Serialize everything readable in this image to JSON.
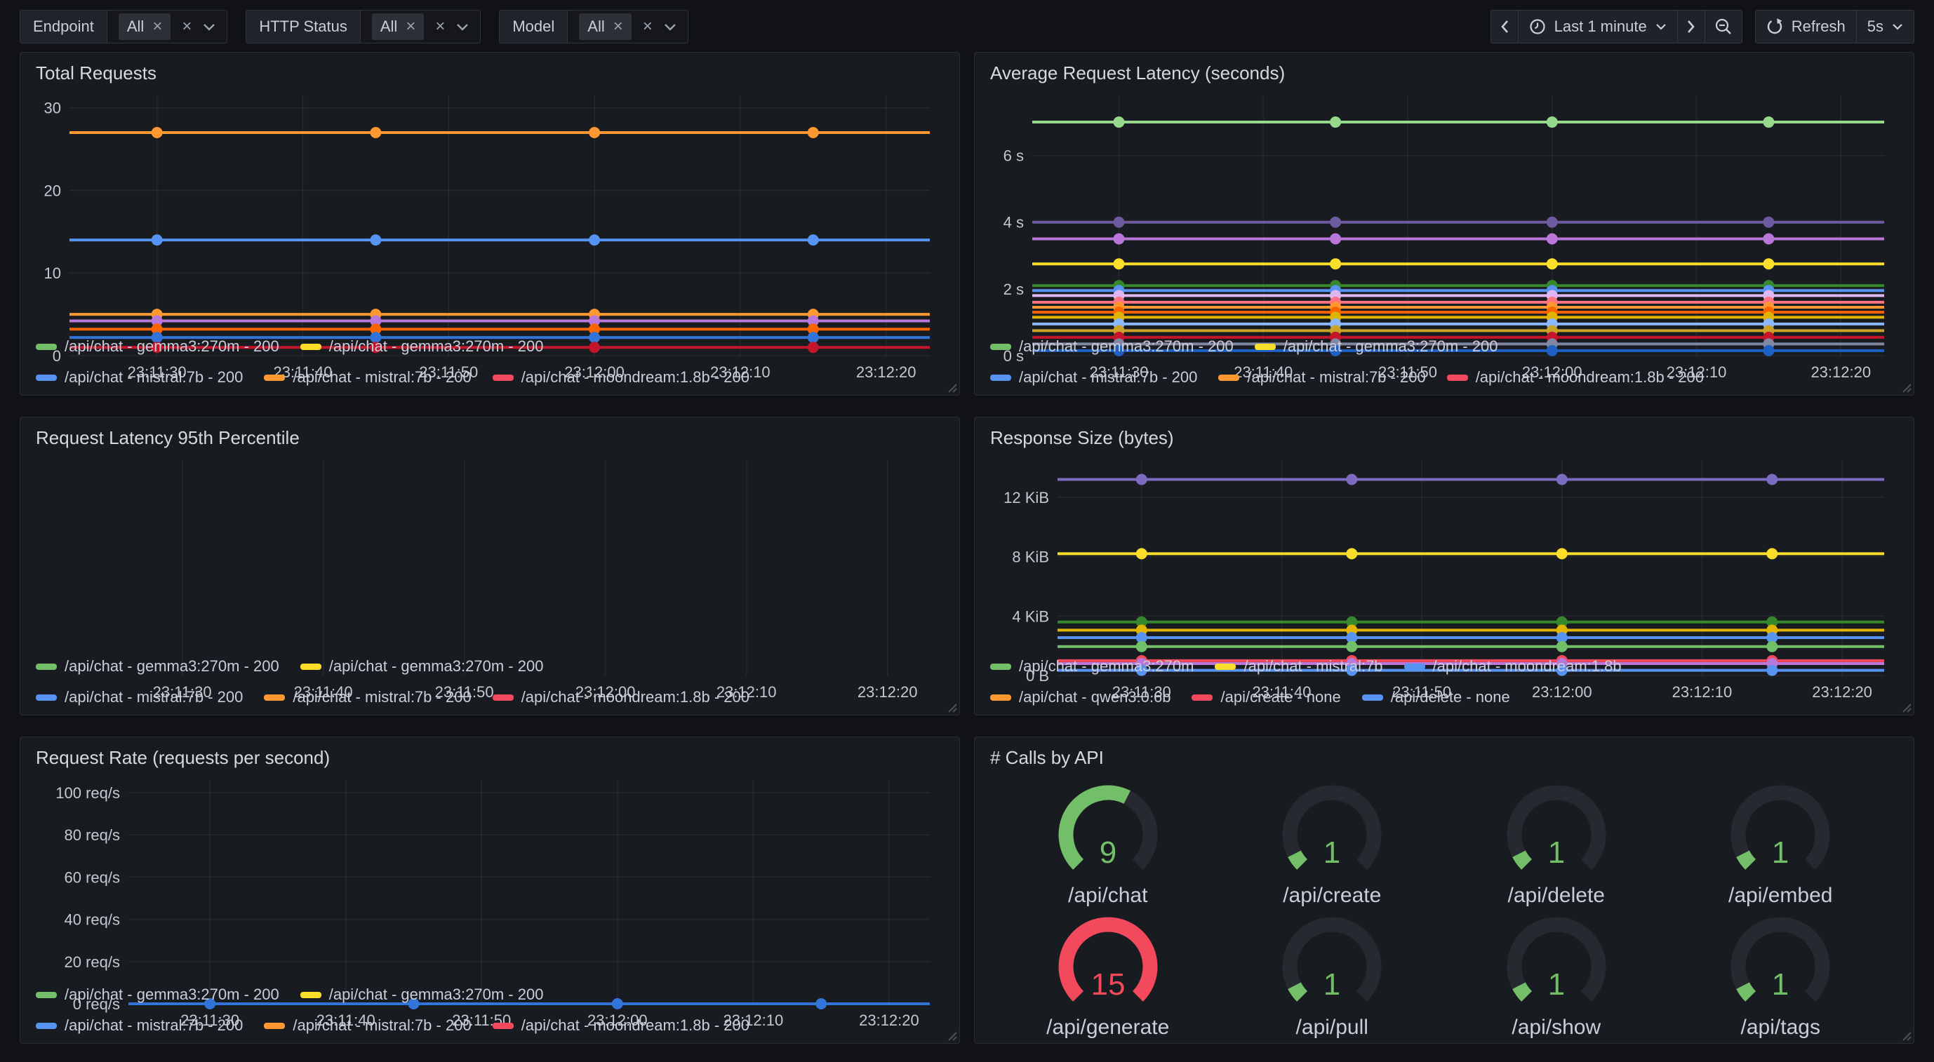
{
  "toolbar": {
    "filters": [
      {
        "label": "Endpoint",
        "chip": "All",
        "chip_remove": "×",
        "clear": "×"
      },
      {
        "label": "HTTP Status",
        "chip": "All",
        "chip_remove": "×",
        "clear": "×"
      },
      {
        "label": "Model",
        "chip": "All",
        "chip_remove": "×",
        "clear": "×"
      }
    ],
    "time_picker": {
      "range": "Last 1 minute",
      "refresh": "Refresh",
      "interval": "5s"
    }
  },
  "chart_data": [
    {
      "id": "total-requests",
      "type": "line",
      "panel_title": "Total Requests",
      "x_start": "23:11:24",
      "x_end": "23:12:23",
      "xticks": [
        "23:11:30",
        "23:11:40",
        "23:11:50",
        "23:12:00",
        "23:12:10",
        "23:12:20"
      ],
      "sample_times": [
        "23:11:30",
        "23:11:45",
        "23:12:00",
        "23:12:15"
      ],
      "yticks": [
        {
          "value": 0,
          "label": "0"
        },
        {
          "value": 10,
          "label": "10"
        },
        {
          "value": 20,
          "label": "20"
        },
        {
          "value": 30,
          "label": "30"
        }
      ],
      "ylim": [
        0,
        31.5
      ],
      "series": [
        {
          "color": "#FF9830",
          "value": 27
        },
        {
          "color": "#5794F2",
          "value": 14
        },
        {
          "color": "#FF9830",
          "value": 5
        },
        {
          "color": "#B877D9",
          "value": 4.2
        },
        {
          "color": "#FA6400",
          "value": 3.2
        },
        {
          "color": "#3274D9",
          "value": 2.2
        },
        {
          "color": "#C4162A",
          "value": 1
        }
      ],
      "legend_rows": [
        [
          {
            "color": "#73BF69",
            "label": "/api/chat - gemma3:270m - 200"
          },
          {
            "color": "#FADE2A",
            "label": "/api/chat - gemma3:270m - 200"
          }
        ],
        [
          {
            "color": "#5794F2",
            "label": "/api/chat - mistral:7b - 200"
          },
          {
            "color": "#FF9830",
            "label": "/api/chat - mistral:7b - 200"
          },
          {
            "color": "#F2495C",
            "label": "/api/chat - moondream:1.8b - 200"
          }
        ]
      ]
    },
    {
      "id": "avg-latency",
      "type": "line",
      "panel_title": "Average Request Latency (seconds)",
      "x_start": "23:11:24",
      "x_end": "23:12:23",
      "xticks": [
        "23:11:30",
        "23:11:40",
        "23:11:50",
        "23:12:00",
        "23:12:10",
        "23:12:20"
      ],
      "sample_times": [
        "23:11:30",
        "23:11:45",
        "23:12:00",
        "23:12:15"
      ],
      "yticks": [
        {
          "value": 0,
          "label": "0 s"
        },
        {
          "value": 2,
          "label": "2 s"
        },
        {
          "value": 4,
          "label": "4 s"
        },
        {
          "value": 6,
          "label": "6 s"
        }
      ],
      "ylim": [
        0,
        7.8
      ],
      "series": [
        {
          "color": "#96D98D",
          "value": 7.0
        },
        {
          "color": "#6E5A9E",
          "value": 4.0
        },
        {
          "color": "#B877D9",
          "value": 3.5
        },
        {
          "color": "#FADE2A",
          "value": 2.75
        },
        {
          "color": "#37872D",
          "value": 2.1
        },
        {
          "color": "#5794F2",
          "value": 1.95
        },
        {
          "color": "#DEB6F2",
          "value": 1.8
        },
        {
          "color": "#FF7383",
          "value": 1.6
        },
        {
          "color": "#FF9830",
          "value": 1.45
        },
        {
          "color": "#FA6400",
          "value": 1.3
        },
        {
          "color": "#E0B400",
          "value": 1.15
        },
        {
          "color": "#8AB8FF",
          "value": 0.95
        },
        {
          "color": "#C9A227",
          "value": 0.75
        },
        {
          "color": "#C4162A",
          "value": 0.55
        },
        {
          "color": "#8087A2",
          "value": 0.35
        },
        {
          "color": "#1F60C4",
          "value": 0.15
        }
      ],
      "legend_rows": [
        [
          {
            "color": "#73BF69",
            "label": "/api/chat - gemma3:270m - 200"
          },
          {
            "color": "#FADE2A",
            "label": "/api/chat - gemma3:270m - 200"
          }
        ],
        [
          {
            "color": "#5794F2",
            "label": "/api/chat - mistral:7b - 200"
          },
          {
            "color": "#FF9830",
            "label": "/api/chat - mistral:7b - 200"
          },
          {
            "color": "#F2495C",
            "label": "/api/chat - moondream:1.8b - 200"
          }
        ]
      ]
    },
    {
      "id": "latency-p95",
      "type": "line",
      "panel_title": "Request Latency 95th Percentile",
      "x_start": "23:11:24",
      "x_end": "23:12:23",
      "xticks": [
        "23:11:30",
        "23:11:40",
        "23:11:50",
        "23:12:00",
        "23:12:10",
        "23:12:20"
      ],
      "sample_times": [],
      "yticks": [],
      "ylim": [
        0,
        1
      ],
      "series": [],
      "legend_rows": [
        [
          {
            "color": "#73BF69",
            "label": "/api/chat - gemma3:270m - 200"
          },
          {
            "color": "#FADE2A",
            "label": "/api/chat - gemma3:270m - 200"
          }
        ],
        [
          {
            "color": "#5794F2",
            "label": "/api/chat - mistral:7b - 200"
          },
          {
            "color": "#FF9830",
            "label": "/api/chat - mistral:7b - 200"
          },
          {
            "color": "#F2495C",
            "label": "/api/chat - moondream:1.8b - 200"
          }
        ]
      ]
    },
    {
      "id": "response-size",
      "type": "line",
      "panel_title": "Response Size (bytes)",
      "x_start": "23:11:24",
      "x_end": "23:12:23",
      "xticks": [
        "23:11:30",
        "23:11:40",
        "23:11:50",
        "23:12:00",
        "23:12:10",
        "23:12:20"
      ],
      "sample_times": [
        "23:11:30",
        "23:11:45",
        "23:12:00",
        "23:12:15"
      ],
      "yticks": [
        {
          "value": 0,
          "label": "0 B"
        },
        {
          "value": 4,
          "label": "4 KiB"
        },
        {
          "value": 8,
          "label": "8 KiB"
        },
        {
          "value": 12,
          "label": "12 KiB"
        }
      ],
      "ylim": [
        0,
        14.5
      ],
      "series": [
        {
          "color": "#7D6BC0",
          "value": 13.2
        },
        {
          "color": "#FADE2A",
          "value": 8.2
        },
        {
          "color": "#37872D",
          "value": 3.6
        },
        {
          "color": "#E0B400",
          "value": 3.05
        },
        {
          "color": "#5794F2",
          "value": 2.55
        },
        {
          "color": "#73BF69",
          "value": 1.95
        },
        {
          "color": "#F2495C",
          "value": 1.0
        },
        {
          "color": "#B877D9",
          "value": 0.8
        },
        {
          "color": "#5794F2",
          "value": 0.35
        }
      ],
      "legend_rows": [
        [
          {
            "color": "#73BF69",
            "label": "/api/chat - gemma3:270m"
          },
          {
            "color": "#FADE2A",
            "label": "/api/chat - mistral:7b"
          },
          {
            "color": "#5794F2",
            "label": "/api/chat - moondream:1.8b"
          }
        ],
        [
          {
            "color": "#FF9830",
            "label": "/api/chat - qwen3:0.6b"
          },
          {
            "color": "#F2495C",
            "label": "/api/create - none"
          },
          {
            "color": "#5794F2",
            "label": "/api/delete - none"
          }
        ]
      ]
    },
    {
      "id": "request-rate",
      "type": "line",
      "panel_title": "Request Rate (requests per second)",
      "x_start": "23:11:24",
      "x_end": "23:12:23",
      "xticks": [
        "23:11:30",
        "23:11:40",
        "23:11:50",
        "23:12:00",
        "23:12:10",
        "23:12:20"
      ],
      "sample_times": [
        "23:11:30",
        "23:11:45",
        "23:12:00",
        "23:12:15"
      ],
      "yticks": [
        {
          "value": 0,
          "label": "0 req/s"
        },
        {
          "value": 20,
          "label": "20 req/s"
        },
        {
          "value": 40,
          "label": "40 req/s"
        },
        {
          "value": 60,
          "label": "60 req/s"
        },
        {
          "value": 80,
          "label": "80 req/s"
        },
        {
          "value": 100,
          "label": "100 req/s"
        }
      ],
      "ylim": [
        0,
        106
      ],
      "series": [
        {
          "color": "#3274D9",
          "value": 0
        }
      ],
      "legend_rows": [
        [
          {
            "color": "#73BF69",
            "label": "/api/chat - gemma3:270m - 200"
          },
          {
            "color": "#FADE2A",
            "label": "/api/chat - gemma3:270m - 200"
          }
        ],
        [
          {
            "color": "#5794F2",
            "label": "/api/chat - mistral:7b - 200"
          },
          {
            "color": "#FF9830",
            "label": "/api/chat - mistral:7b - 200"
          },
          {
            "color": "#F2495C",
            "label": "/api/chat - moondream:1.8b - 200"
          }
        ]
      ]
    }
  ],
  "calls_by_api": {
    "panel_title": "# Calls by API",
    "max": 15,
    "gauges": [
      {
        "label": "/api/chat",
        "value": 9,
        "color": "#73BF69"
      },
      {
        "label": "/api/create",
        "value": 1,
        "color": "#73BF69"
      },
      {
        "label": "/api/delete",
        "value": 1,
        "color": "#73BF69"
      },
      {
        "label": "/api/embed",
        "value": 1,
        "color": "#73BF69"
      },
      {
        "label": "/api/generate",
        "value": 15,
        "color": "#F2495C"
      },
      {
        "label": "/api/pull",
        "value": 1,
        "color": "#73BF69"
      },
      {
        "label": "/api/show",
        "value": 1,
        "color": "#73BF69"
      },
      {
        "label": "/api/tags",
        "value": 1,
        "color": "#73BF69"
      }
    ]
  },
  "colors": {
    "background": "#111217",
    "panel": "#181b1f",
    "text": "#ccccdc",
    "axis": "#c5c8d2",
    "grid": "rgba(204,204,220,0.08)",
    "gauge_track": "#262a30"
  }
}
